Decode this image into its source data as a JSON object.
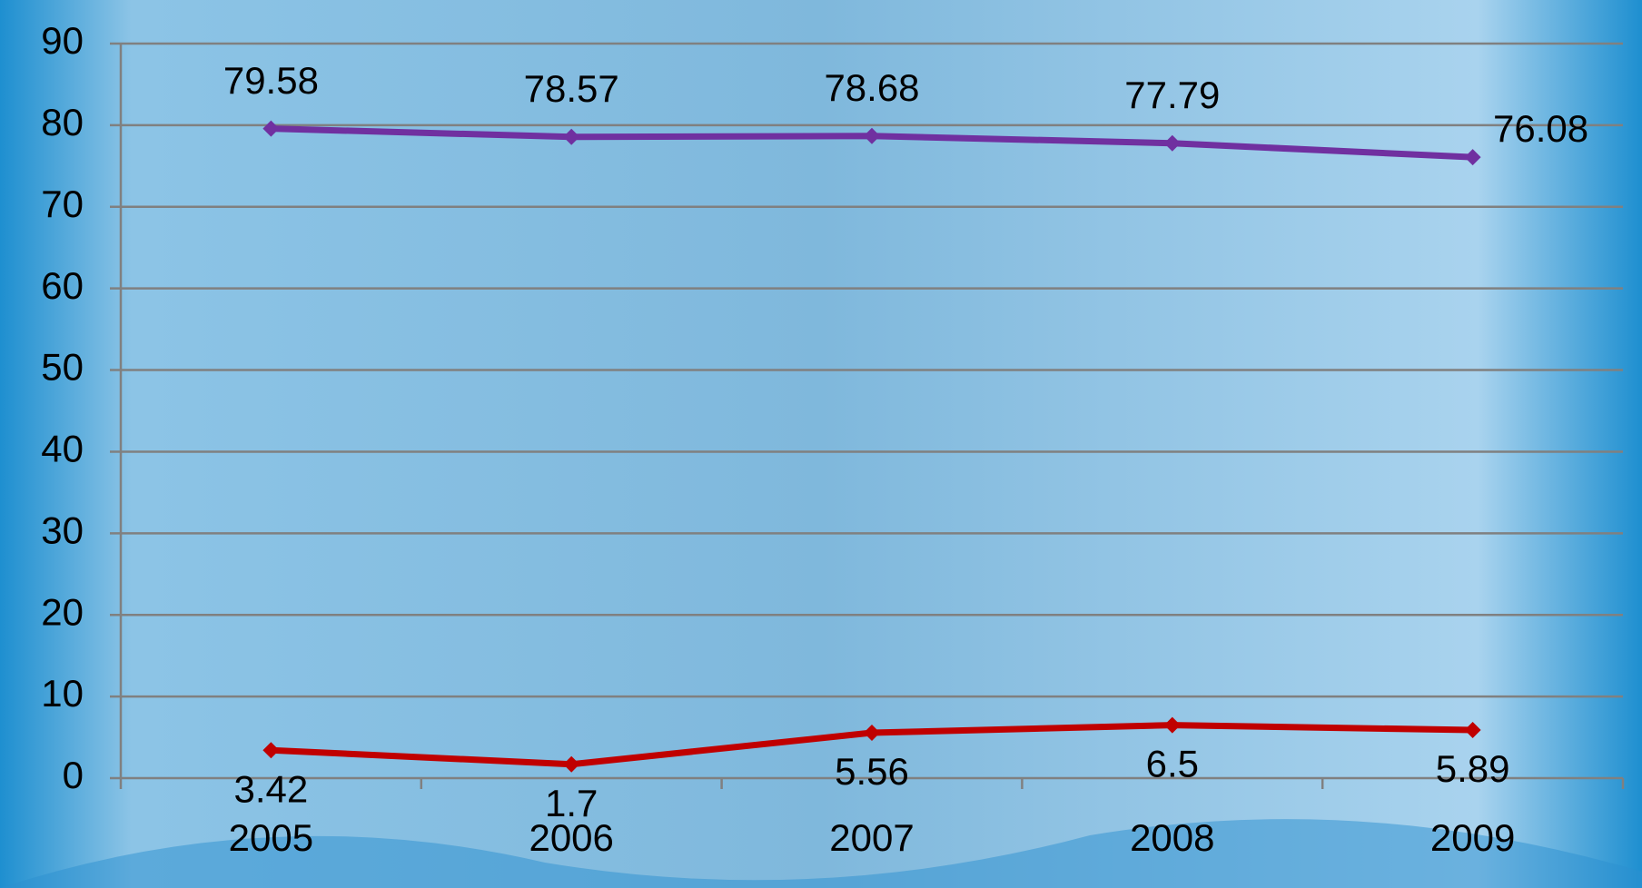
{
  "chart_data": {
    "type": "line",
    "categories": [
      "2005",
      "2006",
      "2007",
      "2008",
      "2009"
    ],
    "series": [
      {
        "color": "#7030a0",
        "values": [
          79.58,
          78.57,
          78.68,
          77.79,
          76.08
        ]
      },
      {
        "color": "#c00000",
        "values": [
          3.42,
          1.7,
          5.56,
          6.5,
          5.89
        ]
      }
    ],
    "ylim": [
      0,
      90
    ],
    "yticks": [
      0,
      10,
      20,
      30,
      40,
      50,
      60,
      70,
      80,
      90
    ],
    "grid": true
  }
}
